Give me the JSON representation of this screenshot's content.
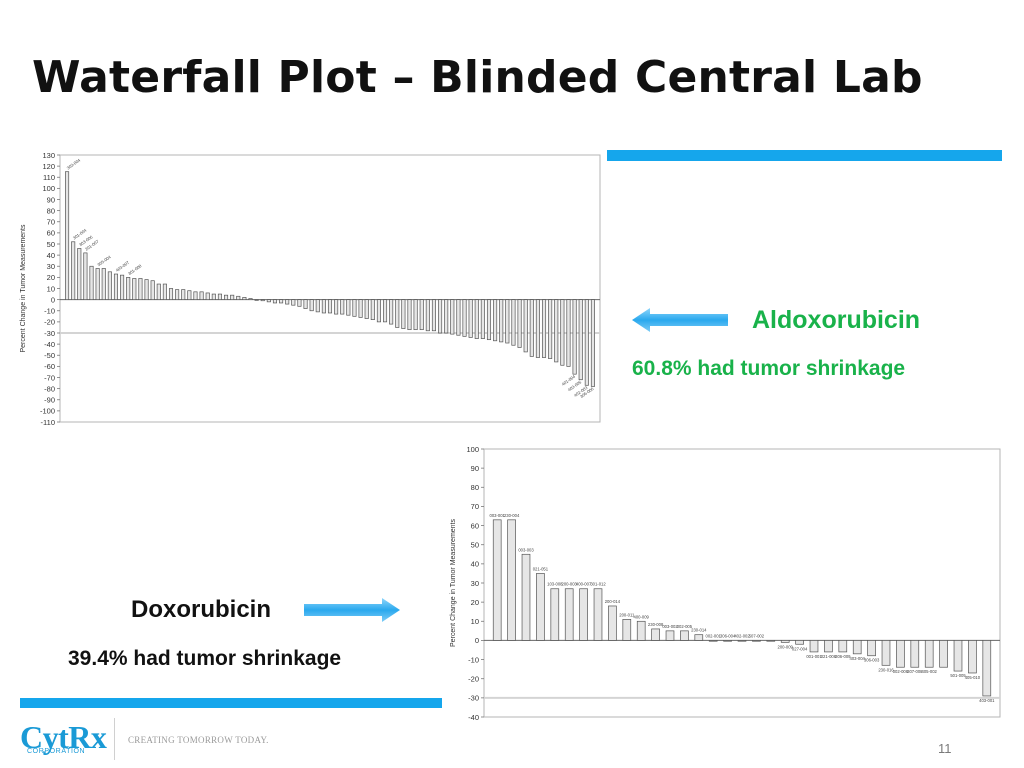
{
  "slide": {
    "title": "Waterfall Plot – Blinded Central Lab",
    "page_number": "11",
    "accent_color": "#15a6ec"
  },
  "aldoxorubicin": {
    "name": "Aldoxorubicin",
    "stat": "60.8% had tumor shrinkage",
    "color": "#19b24a"
  },
  "doxorubicin": {
    "name": "Doxorubicin",
    "stat": "39.4% had tumor shrinkage",
    "color": "#111111"
  },
  "footer": {
    "logo_text": "CytRx",
    "logo_sub": "CORPORATION",
    "tagline": "CREATING TOMORROW TODAY."
  },
  "chart_data": [
    {
      "type": "bar",
      "ylabel": "Percent Change in Tumor Measurements",
      "ylim": [
        -110,
        130
      ],
      "ytick_step": 10,
      "reference_line": -30,
      "values": [
        115,
        52,
        46,
        42,
        30,
        28,
        28,
        25,
        23,
        22,
        20,
        19,
        19,
        18,
        17,
        14,
        14,
        10,
        9,
        9,
        8,
        7,
        7,
        6,
        5,
        5,
        4,
        4,
        3,
        2,
        1,
        0,
        -1,
        -2,
        -3,
        -3,
        -4,
        -5,
        -6,
        -8,
        -10,
        -11,
        -12,
        -12,
        -13,
        -13,
        -14,
        -15,
        -16,
        -17,
        -18,
        -20,
        -20,
        -22,
        -25,
        -26,
        -27,
        -27,
        -27,
        -28,
        -28,
        -30,
        -30,
        -31,
        -32,
        -33,
        -34,
        -35,
        -35,
        -36,
        -37,
        -38,
        -39,
        -41,
        -43,
        -47,
        -51,
        -52,
        -52,
        -53,
        -56,
        -59,
        -60,
        -67,
        -72,
        -77,
        -78
      ],
      "labels": [
        "303-004",
        "301-004",
        "303-006",
        "201-007",
        "",
        "305-004",
        "",
        "",
        "403-007",
        "",
        "301-008",
        "",
        "",
        "",
        "",
        "",
        "",
        "",
        "",
        "",
        "",
        "",
        "",
        "",
        "",
        "",
        "",
        "",
        "",
        "",
        "",
        "",
        "",
        "",
        "",
        "",
        "",
        "",
        "",
        "",
        "",
        "",
        "",
        "",
        "",
        "",
        "",
        "",
        "",
        "",
        "",
        "",
        "",
        "",
        "",
        "",
        "",
        "",
        "",
        "",
        "",
        "",
        "",
        "",
        "",
        "",
        "",
        "",
        "",
        "",
        "",
        "",
        "",
        "",
        "",
        "",
        "",
        "",
        "",
        "",
        "",
        "",
        "",
        "401-004",
        "403-005",
        "402-003",
        "306-006"
      ],
      "bar_fill": "#e6e6e6",
      "bar_stroke": "#555555"
    },
    {
      "type": "bar",
      "ylabel": "Percent Change in Tumor Measurements",
      "ylim": [
        -40,
        100
      ],
      "ytick_step": 10,
      "reference_line": -30,
      "values": [
        63,
        63,
        45,
        35,
        27,
        27,
        27,
        27,
        18,
        11,
        10,
        6,
        5,
        5,
        3,
        0,
        0,
        0,
        0,
        0,
        -1,
        -2,
        -6,
        -6,
        -6,
        -7,
        -8,
        -13,
        -14,
        -14,
        -14,
        -14,
        -16,
        -17,
        -29
      ],
      "labels": [
        "003-001",
        "230-004",
        "003-003",
        "021-051",
        "103-008",
        "200-003",
        "400-007",
        "301-012",
        "200-014",
        "200-011",
        "400-009",
        "230-008",
        "003-002",
        "002-005",
        "230-014",
        "002-001",
        "306-004",
        "402-002",
        "507-002",
        "",
        "200-009",
        "027-004",
        "001-001",
        "021-006",
        "306-009",
        "403-004",
        "306-003",
        "230-016",
        "002-006",
        "307-008",
        "405-002",
        "",
        "501-005",
        "405-010",
        "403-001"
      ],
      "bar_fill": "#e6e6e6",
      "bar_stroke": "#555555"
    }
  ]
}
